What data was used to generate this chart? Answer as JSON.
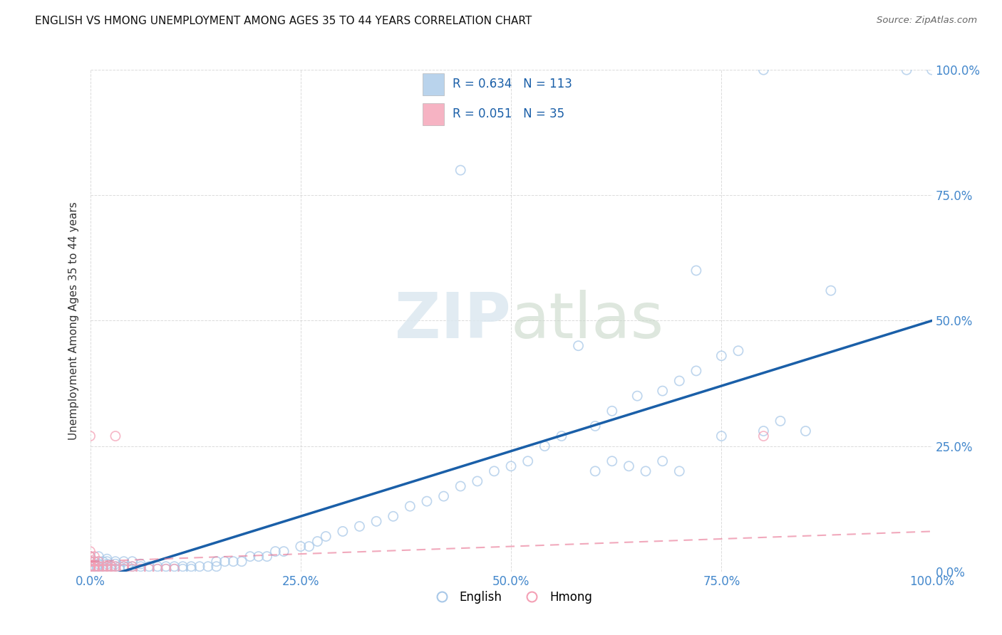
{
  "title": "ENGLISH VS HMONG UNEMPLOYMENT AMONG AGES 35 TO 44 YEARS CORRELATION CHART",
  "source": "Source: ZipAtlas.com",
  "ylabel": "Unemployment Among Ages 35 to 44 years",
  "xlim": [
    0,
    1
  ],
  "ylim": [
    0,
    1
  ],
  "xtick_labels": [
    "0.0%",
    "25.0%",
    "50.0%",
    "75.0%",
    "100.0%"
  ],
  "xtick_positions": [
    0,
    0.25,
    0.5,
    0.75,
    1.0
  ],
  "ytick_labels": [
    "0.0%",
    "25.0%",
    "50.0%",
    "75.0%",
    "100.0%"
  ],
  "ytick_positions": [
    0,
    0.25,
    0.5,
    0.75,
    1.0
  ],
  "english_color": "#a8c8e8",
  "hmong_color": "#f4a0b5",
  "english_R": 0.634,
  "english_N": 113,
  "hmong_R": 0.051,
  "hmong_N": 35,
  "english_line_color": "#1a5fa8",
  "hmong_line_color": "#e87090",
  "background_color": "#ffffff",
  "legend_english_label": "English",
  "legend_hmong_label": "Hmong",
  "tick_color": "#4488cc",
  "ylabel_color": "#333333",
  "title_color": "#111111",
  "source_color": "#666666",
  "watermark_color": "#dce8f0",
  "grid_color": "#cccccc",
  "info_box_border": "#cccccc",
  "info_box_text_color": "#1a5fa8",
  "english_scatter_x": [
    0.0,
    0.0,
    0.0,
    0.0,
    0.0,
    0.0,
    0.0,
    0.0,
    0.0,
    0.0,
    0.005,
    0.005,
    0.005,
    0.008,
    0.008,
    0.01,
    0.01,
    0.01,
    0.01,
    0.01,
    0.015,
    0.015,
    0.015,
    0.02,
    0.02,
    0.02,
    0.02,
    0.02,
    0.025,
    0.025,
    0.03,
    0.03,
    0.03,
    0.03,
    0.035,
    0.035,
    0.04,
    0.04,
    0.04,
    0.045,
    0.05,
    0.05,
    0.05,
    0.06,
    0.06,
    0.06,
    0.07,
    0.07,
    0.08,
    0.08,
    0.09,
    0.09,
    0.1,
    0.1,
    0.11,
    0.11,
    0.12,
    0.12,
    0.13,
    0.14,
    0.15,
    0.15,
    0.16,
    0.17,
    0.18,
    0.19,
    0.2,
    0.21,
    0.22,
    0.23,
    0.25,
    0.26,
    0.27,
    0.28,
    0.3,
    0.32,
    0.34,
    0.36,
    0.38,
    0.4,
    0.42,
    0.44,
    0.46,
    0.48,
    0.5,
    0.52,
    0.54,
    0.56,
    0.6,
    0.62,
    0.65,
    0.68,
    0.7,
    0.72,
    0.75,
    0.77,
    0.8,
    0.72,
    0.44,
    0.58,
    0.6,
    0.62,
    0.64,
    0.66,
    0.68,
    0.7,
    0.97,
    1.0,
    0.75,
    0.8,
    0.82,
    0.85,
    0.88
  ],
  "english_scatter_y": [
    0.005,
    0.005,
    0.01,
    0.01,
    0.01,
    0.02,
    0.02,
    0.02,
    0.03,
    0.03,
    0.005,
    0.01,
    0.02,
    0.005,
    0.01,
    0.005,
    0.01,
    0.015,
    0.02,
    0.03,
    0.005,
    0.01,
    0.02,
    0.005,
    0.01,
    0.015,
    0.02,
    0.025,
    0.005,
    0.01,
    0.005,
    0.01,
    0.015,
    0.02,
    0.005,
    0.01,
    0.005,
    0.01,
    0.02,
    0.01,
    0.005,
    0.01,
    0.02,
    0.005,
    0.01,
    0.015,
    0.005,
    0.01,
    0.005,
    0.01,
    0.005,
    0.01,
    0.005,
    0.01,
    0.005,
    0.01,
    0.005,
    0.01,
    0.01,
    0.01,
    0.01,
    0.02,
    0.02,
    0.02,
    0.02,
    0.03,
    0.03,
    0.03,
    0.04,
    0.04,
    0.05,
    0.05,
    0.06,
    0.07,
    0.08,
    0.09,
    0.1,
    0.11,
    0.13,
    0.14,
    0.15,
    0.17,
    0.18,
    0.2,
    0.21,
    0.22,
    0.25,
    0.27,
    0.29,
    0.32,
    0.35,
    0.36,
    0.38,
    0.4,
    0.43,
    0.44,
    1.0,
    0.6,
    0.8,
    0.45,
    0.2,
    0.22,
    0.21,
    0.2,
    0.22,
    0.2,
    1.0,
    1.0,
    0.27,
    0.28,
    0.3,
    0.28,
    0.56
  ],
  "hmong_scatter_x": [
    0.0,
    0.0,
    0.0,
    0.0,
    0.0,
    0.0,
    0.0,
    0.0,
    0.005,
    0.005,
    0.005,
    0.005,
    0.01,
    0.01,
    0.01,
    0.015,
    0.015,
    0.02,
    0.02,
    0.025,
    0.025,
    0.03,
    0.03,
    0.04,
    0.04,
    0.05,
    0.05,
    0.06,
    0.07,
    0.08,
    0.09,
    0.1,
    0.03,
    0.8,
    0.0
  ],
  "hmong_scatter_y": [
    0.005,
    0.01,
    0.01,
    0.02,
    0.02,
    0.03,
    0.03,
    0.04,
    0.005,
    0.01,
    0.02,
    0.03,
    0.005,
    0.01,
    0.02,
    0.005,
    0.01,
    0.005,
    0.01,
    0.005,
    0.01,
    0.005,
    0.01,
    0.005,
    0.01,
    0.005,
    0.01,
    0.005,
    0.005,
    0.005,
    0.005,
    0.005,
    0.27,
    0.27,
    0.27
  ],
  "eng_line_x0": 0.0,
  "eng_line_x1": 1.0,
  "eng_line_y0": -0.02,
  "eng_line_y1": 0.5,
  "hmong_line_x0": 0.0,
  "hmong_line_x1": 1.0,
  "hmong_line_y0": 0.02,
  "hmong_line_y1": 0.08
}
